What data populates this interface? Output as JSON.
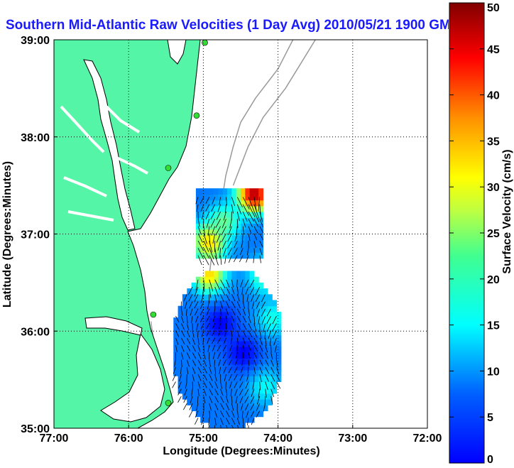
{
  "chart_data": {
    "type": "heatmap",
    "title": "Southern Mid-Atlantic Raw Velocities (1 Day Avg) 2010/05/21 1900 GMT",
    "xlabel": "Longitude (Degrees:Minutes)",
    "ylabel": "Latitude (Degrees:Minutes)",
    "xlim": [
      -77,
      -72
    ],
    "ylim": [
      35,
      39
    ],
    "x_ticks": [
      {
        "value": -77,
        "label": "77:00"
      },
      {
        "value": -76,
        "label": "76:00"
      },
      {
        "value": -75,
        "label": "75:00"
      },
      {
        "value": -74,
        "label": "74:00"
      },
      {
        "value": -73,
        "label": "73:00"
      },
      {
        "value": -72,
        "label": "72:00"
      }
    ],
    "y_ticks": [
      {
        "value": 35,
        "label": "35:00"
      },
      {
        "value": 36,
        "label": "36:00"
      },
      {
        "value": 37,
        "label": "37:00"
      },
      {
        "value": 38,
        "label": "38:00"
      },
      {
        "value": 39,
        "label": "39:00"
      }
    ],
    "grid": true,
    "grid_style": "dotted",
    "colorbar": {
      "label": "Surface Velocity (cm/s)",
      "range": [
        0,
        50
      ],
      "ticks": [
        0,
        5,
        10,
        15,
        20,
        25,
        30,
        35,
        40,
        45,
        50
      ],
      "colormap": "jet",
      "placement": "right"
    },
    "land_color": "#55f5a8",
    "coastline_color": "#000000",
    "bathymetry_color": "#9a9a9a",
    "station_color": "#33dd33",
    "stations": [
      {
        "lon": -74.98,
        "lat": 38.97
      },
      {
        "lon": -75.09,
        "lat": 38.22
      },
      {
        "lon": -75.47,
        "lat": 37.68
      },
      {
        "lon": -75.67,
        "lat": 36.17
      },
      {
        "lon": -75.47,
        "lat": 35.26
      }
    ],
    "velocity_regions": [
      {
        "name": "northern",
        "lon": [
          -75.1,
          -74.2
        ],
        "lat": [
          36.75,
          37.45
        ]
      },
      {
        "name": "southern",
        "lon": [
          -75.4,
          -74.0
        ],
        "lat": [
          35.0,
          36.6
        ]
      }
    ],
    "velocity_hotspots": [
      {
        "lon": -74.35,
        "lat": 37.38,
        "value": 48
      },
      {
        "lon": -74.95,
        "lat": 36.9,
        "value": 34
      },
      {
        "lon": -74.75,
        "lat": 37.1,
        "value": 24
      },
      {
        "lon": -74.95,
        "lat": 36.55,
        "value": 33
      },
      {
        "lon": -74.2,
        "lat": 36.55,
        "value": 24
      },
      {
        "lon": -74.1,
        "lat": 36.1,
        "value": 20
      },
      {
        "lon": -74.2,
        "lat": 35.4,
        "value": 19
      },
      {
        "lon": -74.8,
        "lat": 36.05,
        "value": 6
      },
      {
        "lon": -74.5,
        "lat": 35.75,
        "value": 6
      }
    ],
    "velocity_background": 12
  }
}
